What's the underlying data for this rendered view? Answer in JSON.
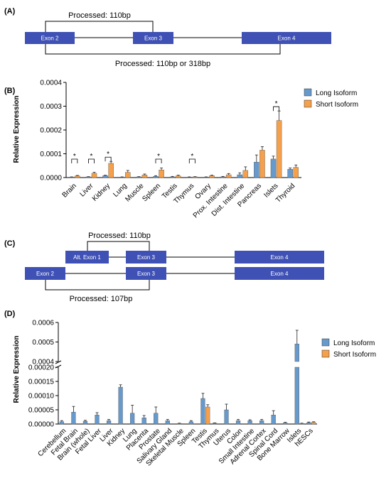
{
  "panels": {
    "a": {
      "label": "(A)",
      "exons": [
        {
          "name": "Exon 2"
        },
        {
          "name": "Exon 3"
        },
        {
          "name": "Exon 4"
        }
      ],
      "top_bracket_label": "Processed: 110bp",
      "bottom_bracket_label": "Processed: 110bp or 318bp",
      "colors": {
        "exon": "#3f51b5",
        "line": "#000000"
      }
    },
    "c": {
      "label": "(C)",
      "row1_exons": [
        {
          "name": "Alt. Exon 1"
        },
        {
          "name": "Exon 3"
        },
        {
          "name": "Exon 4"
        }
      ],
      "row2_exons": [
        {
          "name": "Exon 2"
        },
        {
          "name": "Exon 3"
        },
        {
          "name": "Exon 4"
        }
      ],
      "top_bracket_label": "Processed: 110bp",
      "bottom_bracket_label": "Processed: 107bp"
    }
  },
  "chart_data": [
    {
      "panel_label": "(B)",
      "type": "bar",
      "ylabel": "Relative Expression",
      "ylim": [
        0,
        0.0004
      ],
      "yticks": [
        "0.0000",
        "0.0001",
        "0.0002",
        "0.0003",
        "0.0004"
      ],
      "categories": [
        "Brain",
        "Liver",
        "Kidney",
        "Lung",
        "Muscle",
        "Spleen",
        "Testis",
        "Thymus",
        "Ovary",
        "Prox. Intestine",
        "Dist. Intestine",
        "Pancreas",
        "Islets",
        "Thyroid"
      ],
      "series": [
        {
          "name": "Long Isoform",
          "color": "#6699cc",
          "values": [
            2e-06,
            3e-06,
            8e-06,
            2e-06,
            3e-06,
            5e-06,
            3e-06,
            2e-06,
            2e-06,
            3e-06,
            1.2e-05,
            6.5e-05,
            7.8e-05,
            3.5e-05
          ],
          "errors": [
            1e-06,
            1e-06,
            2e-06,
            1e-06,
            1e-06,
            3e-06,
            2e-06,
            1e-06,
            1e-06,
            2e-06,
            8e-06,
            3e-05,
            1.2e-05,
            5e-06
          ]
        },
        {
          "name": "Short Isoform",
          "color": "#f5a04a",
          "values": [
            7e-06,
            1.8e-05,
            6e-05,
            2.2e-05,
            1.1e-05,
            3.2e-05,
            7e-06,
            3e-06,
            8e-06,
            1.2e-05,
            3e-05,
            0.000115,
            0.00024,
            4.3e-05
          ],
          "errors": [
            2e-06,
            4e-06,
            8e-06,
            8e-06,
            4e-06,
            8e-06,
            3e-06,
            1e-06,
            2e-06,
            5e-06,
            1.5e-05,
            1.5e-05,
            4e-05,
            1e-05
          ]
        }
      ],
      "significance_marker": "*",
      "significant_categories": [
        "Brain",
        "Liver",
        "Kidney",
        "Spleen",
        "Thymus",
        "Islets"
      ],
      "legend_position": "top-right"
    },
    {
      "panel_label": "(D)",
      "type": "bar",
      "ylabel": "Relative Expression",
      "broken_axis": true,
      "lower_ylim": [
        0,
        0.0002
      ],
      "lower_yticks": [
        "0.00000",
        "0.00005",
        "0.00010",
        "0.00015",
        "0.00020"
      ],
      "upper_ylim": [
        0.0004,
        0.0006
      ],
      "upper_yticks": [
        "0.0004",
        "0.0005",
        "0.0006"
      ],
      "categories": [
        "Cerebellum",
        "Fetal Brain",
        "Brain (whole)",
        "Fetal Liver",
        "Liver",
        "Kidney",
        "Lung",
        "Placenta",
        "Prostate",
        "Salivary Gland",
        "Skeletal Muscle",
        "Spleen",
        "Testis",
        "Thymus",
        "Uterus",
        "Colon",
        "Small Intestine",
        "Adrenal Cortex",
        "Spinal Cord",
        "Bone Marrow",
        "Islets",
        "hESCs"
      ],
      "series": [
        {
          "name": "Long Isoform",
          "color": "#6699cc",
          "values": [
            8e-06,
            4.2e-05,
            1e-05,
            3.2e-05,
            1.2e-05,
            0.00013,
            3.8e-05,
            2.2e-05,
            3.8e-05,
            1.2e-05,
            2e-06,
            8e-06,
            9e-05,
            3e-06,
            5e-05,
            1.2e-05,
            1.2e-05,
            1.2e-05,
            3.2e-05,
            4e-06,
            0.00049,
            5e-06
          ],
          "errors": [
            4e-06,
            2e-05,
            3e-06,
            8e-06,
            4e-06,
            8e-06,
            2.8e-05,
            8e-06,
            2.2e-05,
            4e-06,
            1e-06,
            4e-06,
            1.8e-05,
            1e-06,
            2e-05,
            4e-06,
            3e-06,
            4e-06,
            1.5e-05,
            2e-06,
            7e-05,
            2e-06
          ]
        },
        {
          "name": "Short Isoform",
          "color": "#f5a04a",
          "values": [
            0,
            0,
            0,
            0,
            0,
            0,
            0,
            0,
            0,
            0,
            0,
            0,
            6e-05,
            0,
            0,
            0,
            0,
            0,
            0,
            0,
            2e-06,
            6e-06
          ],
          "errors": [
            0,
            0,
            0,
            0,
            0,
            0,
            0,
            0,
            0,
            0,
            0,
            0,
            8e-06,
            0,
            0,
            0,
            0,
            0,
            0,
            0,
            1e-06,
            2e-06
          ]
        }
      ],
      "legend_position": "top-right"
    }
  ]
}
